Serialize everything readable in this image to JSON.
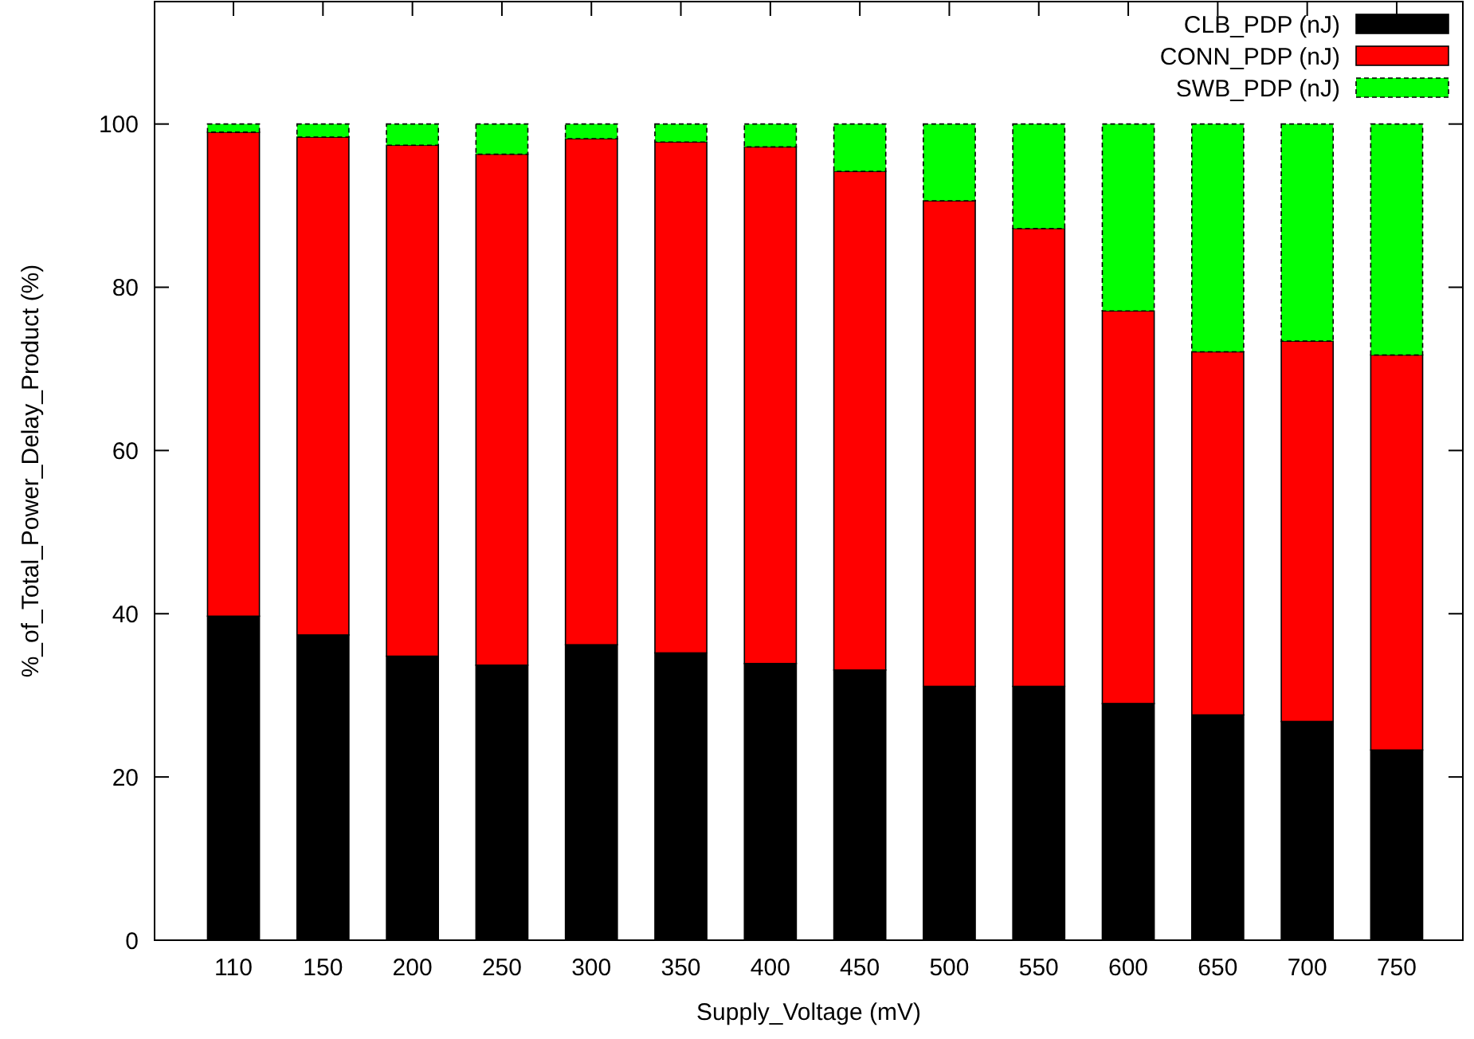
{
  "chart_data": {
    "type": "bar",
    "stacked": true,
    "xlabel": "Supply_Voltage (mV)",
    "ylabel": "%_of_Total_Power_Delay_Product (%)",
    "categories": [
      "110",
      "150",
      "200",
      "250",
      "300",
      "350",
      "400",
      "450",
      "500",
      "550",
      "600",
      "650",
      "700",
      "750"
    ],
    "series": [
      {
        "name": "CLB_PDP (nJ)",
        "color": "#000000",
        "values": [
          39.7,
          37.4,
          34.8,
          33.7,
          36.2,
          35.2,
          33.9,
          33.1,
          31.1,
          31.1,
          29.0,
          27.6,
          26.8,
          23.3
        ]
      },
      {
        "name": "CONN_PDP (nJ)",
        "color": "#ff0000",
        "values": [
          59.3,
          61.0,
          62.6,
          62.6,
          62.0,
          62.6,
          63.3,
          61.1,
          59.5,
          56.1,
          48.1,
          44.5,
          46.6,
          48.4
        ]
      },
      {
        "name": "SWB_PDP (nJ)",
        "color": "#00ff00",
        "values": [
          1.0,
          1.6,
          2.6,
          3.7,
          1.8,
          2.2,
          2.8,
          5.8,
          9.4,
          12.8,
          22.9,
          27.9,
          26.6,
          28.3
        ]
      }
    ],
    "ylim": [
      0,
      115
    ],
    "yticks": [
      0,
      20,
      40,
      60,
      80,
      100
    ],
    "grid": false,
    "legend": "top right"
  }
}
